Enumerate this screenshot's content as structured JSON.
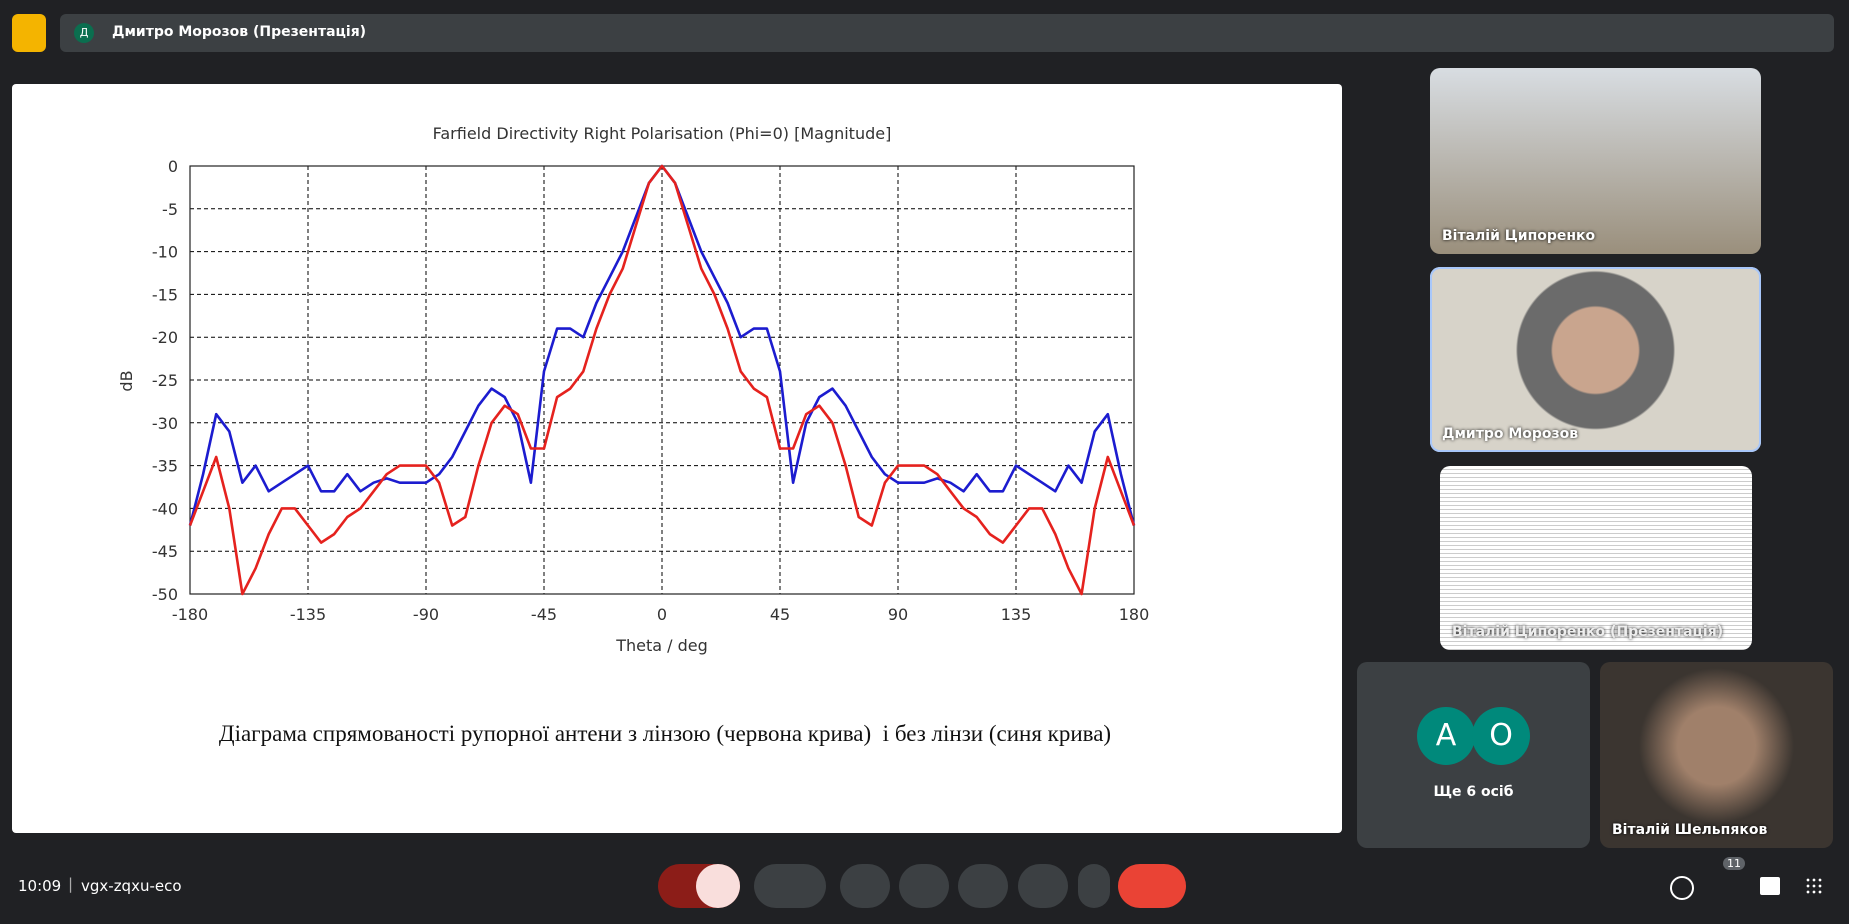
{
  "header": {
    "presenter_initial": "Д",
    "title": "Дмитро Морозов (Презентація)"
  },
  "chart_data": {
    "type": "line",
    "title": "Farfield Directivity Right Polarisation (Phi=0) [Magnitude]",
    "x_label": "Theta / deg",
    "y_label": "dB",
    "x": [
      -180,
      -175,
      -170,
      -165,
      -160,
      -155,
      -150,
      -145,
      -140,
      -135,
      -130,
      -125,
      -120,
      -115,
      -110,
      -105,
      -100,
      -95,
      -90,
      -85,
      -80,
      -75,
      -70,
      -65,
      -60,
      -55,
      -50,
      -45,
      -40,
      -35,
      -30,
      -25,
      -20,
      -15,
      -10,
      -5,
      0,
      5,
      10,
      15,
      20,
      25,
      30,
      35,
      40,
      45,
      50,
      55,
      60,
      65,
      70,
      75,
      80,
      85,
      90,
      95,
      100,
      105,
      110,
      115,
      120,
      125,
      130,
      135,
      140,
      145,
      150,
      155,
      160,
      165,
      170,
      175,
      180
    ],
    "series": [
      {
        "color": "#1c1ccf",
        "values": [
          -42,
          -36,
          -29,
          -31,
          -37,
          -35,
          -38,
          -37,
          -36,
          -35,
          -38,
          -38,
          -36,
          -38,
          -37,
          -36.5,
          -37,
          -37,
          -37,
          -36,
          -34,
          -31,
          -28,
          -26,
          -27,
          -30,
          -37,
          -24,
          -19,
          -19,
          -20,
          -16,
          -13,
          -10,
          -6,
          -2,
          0,
          -2,
          -6,
          -10,
          -13,
          -16,
          -20,
          -19,
          -19,
          -24,
          -37,
          -30,
          -27,
          -26,
          -28,
          -31,
          -34,
          -36,
          -37,
          -37,
          -37,
          -36.5,
          -37,
          -38,
          -36,
          -38,
          -38,
          -35,
          -36,
          -37,
          -38,
          -35,
          -37,
          -31,
          -29,
          -36,
          -42
        ]
      },
      {
        "color": "#e5221e",
        "values": [
          -42,
          -38,
          -34,
          -40,
          -50,
          -47,
          -43,
          -40,
          -40,
          -42,
          -44,
          -43,
          -41,
          -40,
          -38,
          -36,
          -35,
          -35,
          -35,
          -37,
          -42,
          -41,
          -35,
          -30,
          -28,
          -29,
          -33,
          -33,
          -27,
          -26,
          -24,
          -19,
          -15,
          -12,
          -7,
          -2,
          0,
          -2,
          -7,
          -12,
          -15,
          -19,
          -24,
          -26,
          -27,
          -33,
          -33,
          -29,
          -28,
          -30,
          -35,
          -41,
          -42,
          -37,
          -35,
          -35,
          -35,
          -36,
          -38,
          -40,
          -41,
          -43,
          -44,
          -42,
          -40,
          -40,
          -43,
          -47,
          -50,
          -40,
          -34,
          -38,
          -42
        ]
      }
    ],
    "xlim": [
      -180,
      180
    ],
    "ylim": [
      -50,
      0
    ],
    "xticks": [
      -180,
      -135,
      -90,
      -45,
      0,
      45,
      90,
      135,
      180
    ],
    "yticks": [
      0,
      -5,
      -10,
      -15,
      -20,
      -25,
      -30,
      -35,
      -40,
      -45,
      -50
    ],
    "grid": true
  },
  "caption": "Діаграма спрямованості рупорної антени з лінзою (червона крива)  і без лінзи (синя крива)",
  "participants": [
    {
      "name": "Віталій Ципоренко"
    },
    {
      "name": "Дмитро Морозов"
    },
    {
      "name": "Віталій Ципоренко (Презентація)"
    },
    {
      "name": "Віталій Шельпяков"
    }
  ],
  "others": {
    "avatars": [
      "А",
      "О"
    ],
    "label": "Ще 6 осіб"
  },
  "footer": {
    "time": "10:09",
    "meeting_code": "vgx-zqxu-eco",
    "participant_count": 11
  }
}
